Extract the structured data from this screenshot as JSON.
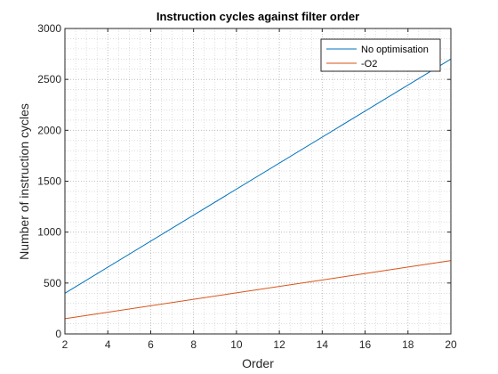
{
  "chart_data": {
    "type": "line",
    "title": "Instruction cycles against filter order",
    "xlabel": "Order",
    "ylabel": "Number of instruction cycles",
    "xlim": [
      2,
      20
    ],
    "ylim": [
      0,
      3000
    ],
    "x_ticks": [
      2,
      4,
      6,
      8,
      10,
      12,
      14,
      16,
      18,
      20
    ],
    "y_ticks": [
      0,
      500,
      1000,
      1500,
      2000,
      2500,
      3000
    ],
    "grid": true,
    "minor_grid": true,
    "legend_location": "top-right",
    "series": [
      {
        "name": "No optimisation",
        "color": "#0072BD",
        "x": [
          2,
          20
        ],
        "y": [
          400,
          2700
        ]
      },
      {
        "name": "-O2",
        "color": "#D95319",
        "x": [
          2,
          20
        ],
        "y": [
          150,
          720
        ]
      }
    ]
  }
}
